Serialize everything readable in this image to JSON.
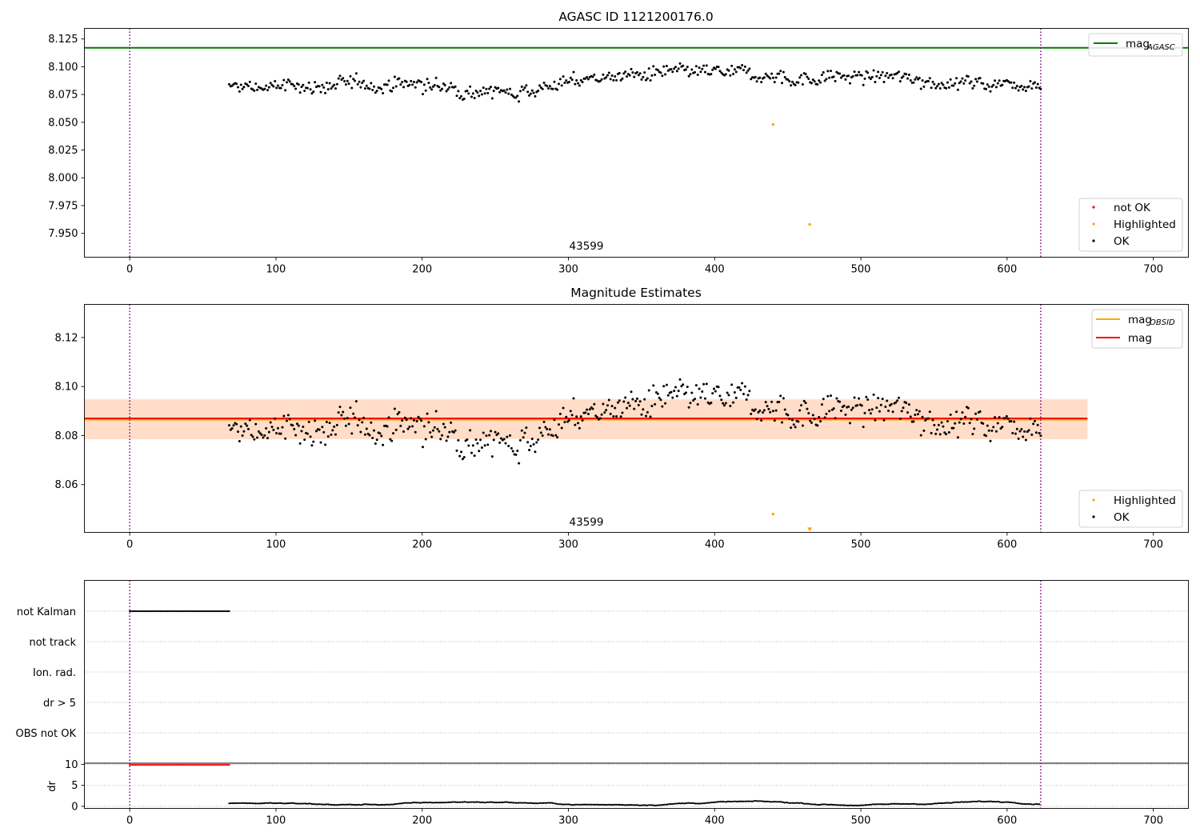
{
  "colors": {
    "ok": "#000000",
    "highlighted": "#ffa500",
    "not_ok": "#ff0000",
    "agasc_line": "#008000",
    "obsid_line": "#ffa500",
    "mag_line": "#ff0000",
    "obsid_band": "#ffdcc4",
    "mag_band": "#ffe4e6",
    "marker_vline": "#800080",
    "grid": "#b0b0b0"
  },
  "panel1": {
    "title": "AGASC ID 1121200176.0",
    "annotation": "43599",
    "legend_top": [
      {
        "label": "mag",
        "sub": "AGASC",
        "color": "#008000"
      }
    ],
    "legend_bottom": [
      {
        "label": "not OK",
        "color": "#ff0000"
      },
      {
        "label": "Highlighted",
        "color": "#ffa500"
      },
      {
        "label": "OK",
        "color": "#000000"
      }
    ]
  },
  "panel2": {
    "title": "Magnitude Estimates",
    "annotation": "43599",
    "legend_top": [
      {
        "label": "mag",
        "sub": "OBSID",
        "color": "#ffa500"
      },
      {
        "label": "mag",
        "sub": "",
        "color": "#ff0000"
      }
    ],
    "legend_bottom": [
      {
        "label": "Highlighted",
        "color": "#ffa500"
      },
      {
        "label": "OK",
        "color": "#000000"
      }
    ]
  },
  "panel3": {
    "flag_labels": [
      "not Kalman",
      "not track",
      "Ion. rad.",
      "dr > 5",
      "OBS not OK"
    ],
    "dr_ylabel": "dr"
  },
  "chart_data": [
    {
      "type": "scatter",
      "title": "AGASC ID 1121200176.0",
      "xlim": [
        -31,
        724
      ],
      "ylim": [
        7.9285,
        8.1345
      ],
      "xticks": [
        0,
        100,
        200,
        300,
        400,
        500,
        600,
        700
      ],
      "yticks": [
        7.95,
        7.975,
        8.0,
        8.025,
        8.05,
        8.075,
        8.1,
        8.125
      ],
      "grid": false,
      "legend": [
        "upper right",
        "lower right"
      ],
      "agasc_mag": 8.117,
      "vlines": [
        0,
        623
      ],
      "ok_points": {
        "x_start": 68,
        "x_end": 623,
        "count": 550,
        "mean": 8.087,
        "range": [
          8.064,
          8.106
        ]
      },
      "highlighted_points": [
        [
          440,
          8.048
        ],
        [
          465,
          7.958
        ]
      ],
      "annotation": {
        "text": "43599",
        "x": 311
      }
    },
    {
      "type": "scatter",
      "title": "Magnitude Estimates",
      "xlim": [
        -31,
        724
      ],
      "ylim": [
        8.0405,
        8.1335
      ],
      "xticks": [
        0,
        100,
        200,
        300,
        400,
        500,
        600,
        700
      ],
      "yticks": [
        8.06,
        8.08,
        8.1,
        8.12
      ],
      "grid": false,
      "legend": [
        "upper right",
        "lower right"
      ],
      "mag": 8.087,
      "mag_band": [
        8.079,
        8.095
      ],
      "mag_obsid": 8.0865,
      "obsid_band": [
        8.0785,
        8.0945
      ],
      "band_x": [
        -31,
        655
      ],
      "vlines": [
        0,
        623
      ],
      "highlighted_points": [
        [
          440,
          8.048
        ],
        [
          465,
          8.0415
        ]
      ],
      "annotation": {
        "text": "43599",
        "x": 311
      }
    },
    {
      "type": "scatter",
      "xlim": [
        -31,
        724
      ],
      "xticks": [
        0,
        100,
        200,
        300,
        400,
        500,
        600,
        700
      ],
      "flags": [
        "not Kalman",
        "not track",
        "Ion. rad.",
        "dr > 5",
        "OBS not OK"
      ],
      "not_kalman_x": [
        0,
        68
      ],
      "dr": {
        "ylabel": "dr",
        "yticks": [
          0,
          5,
          10
        ],
        "ylim": [
          -0.5,
          10.3
        ],
        "not_ok_x": [
          0,
          68
        ],
        "not_ok_value": 9.9,
        "ok_x": [
          68,
          623
        ],
        "ok_range": [
          0.2,
          1.5
        ]
      },
      "vlines": [
        0,
        623
      ]
    }
  ]
}
